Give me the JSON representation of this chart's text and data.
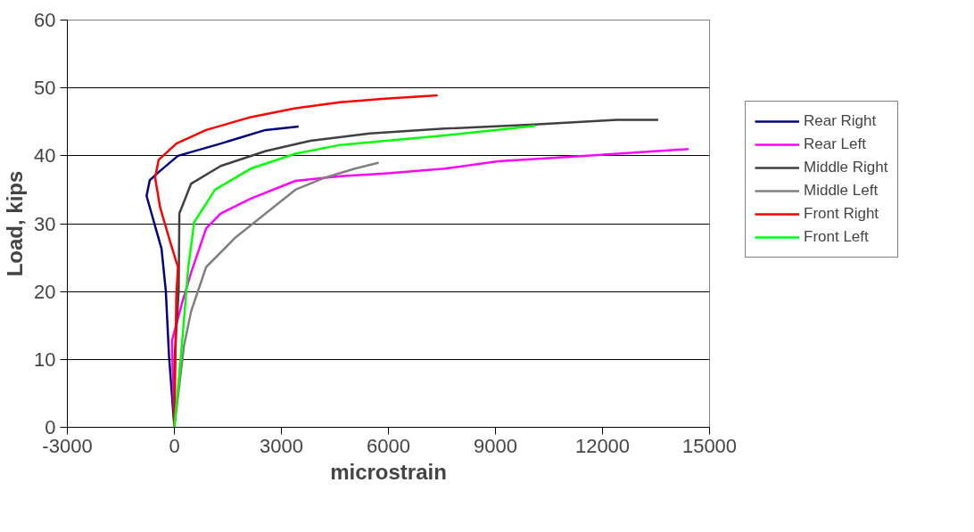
{
  "chart_data": {
    "type": "line",
    "xlabel": "microstrain",
    "ylabel": "Load, kips",
    "xlim": [
      -3000,
      15000
    ],
    "xticks": [
      {
        "value": -3000,
        "label": "-3000"
      },
      0,
      3000,
      6000,
      9000,
      12000,
      15000
    ],
    "ylim": [
      0,
      60
    ],
    "yticks": [
      0,
      10,
      20,
      30,
      40,
      50,
      60
    ],
    "grid": "y",
    "legend": "right",
    "marker": "none",
    "line_style": "solid",
    "series": [
      {
        "name": "Rear Right",
        "color": "#000080",
        "x": [
          0,
          -150,
          -240,
          -360,
          -570,
          -780,
          -690,
          -440,
          100,
          1300,
          2550,
          3480
        ],
        "values": [
          0,
          10.5,
          20.1,
          26.3,
          30.2,
          34.1,
          36.4,
          37.6,
          40.0,
          41.8,
          43.8,
          44.3
        ]
      },
      {
        "name": "Rear Left",
        "color": "#ff00ff",
        "x": [
          0,
          -70,
          220,
          470,
          890,
          1300,
          2140,
          3390,
          4640,
          5900,
          7570,
          9070,
          11570,
          14410
        ],
        "values": [
          0,
          12.7,
          18.4,
          22.8,
          29.3,
          31.5,
          33.7,
          36.3,
          37.0,
          37.4,
          38.1,
          39.2,
          40.0,
          41.0
        ]
      },
      {
        "name": "Middle Right",
        "color": "#404040",
        "x": [
          0,
          10,
          120,
          140,
          470,
          1300,
          2560,
          3810,
          5480,
          7570,
          10070,
          12400,
          13560
        ],
        "values": [
          0,
          10.5,
          20.0,
          31.5,
          35.9,
          38.5,
          40.7,
          42.2,
          43.3,
          44.0,
          44.6,
          45.3,
          45.3
        ]
      },
      {
        "name": "Middle Left",
        "color": "#808080",
        "x": [
          0,
          270,
          470,
          890,
          1720,
          2560,
          3390,
          4230,
          5060,
          5730
        ],
        "values": [
          0,
          12.0,
          17.1,
          23.6,
          28.0,
          31.5,
          35.0,
          36.8,
          38.1,
          39.0
        ]
      },
      {
        "name": "Front Right",
        "color": "#ff0000",
        "x": [
          0,
          55,
          100,
          -110,
          -400,
          -540,
          -440,
          55,
          890,
          2140,
          3390,
          4640,
          5900,
          7380
        ],
        "values": [
          0,
          19.3,
          23.6,
          27.2,
          32.4,
          36.8,
          39.4,
          41.8,
          43.8,
          45.7,
          47.0,
          47.9,
          48.4,
          48.9
        ]
      },
      {
        "name": "Front Left",
        "color": "#00ff00",
        "x": [
          0,
          220,
          390,
          555,
          1140,
          2140,
          3390,
          4640,
          7570,
          10110
        ],
        "values": [
          0,
          12.7,
          23.6,
          30.2,
          35.0,
          38.1,
          40.3,
          41.6,
          43.0,
          44.4
        ]
      }
    ]
  }
}
